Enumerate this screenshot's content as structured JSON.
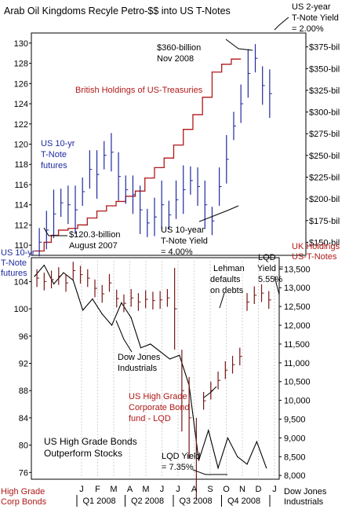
{
  "colors": {
    "background": "#ffffff",
    "panel_fill": "#ffffff",
    "grid": "#bfbfbf",
    "tnote_bars": "#1f2aa0",
    "uk_holdings": "#b01818",
    "lqd_bars": "#7a1616",
    "dow": "#000000",
    "red_label": "#b01818",
    "blue_label": "#1f2aa0"
  },
  "chart_data": [
    {
      "panel": "top",
      "type": "line",
      "title": "Arab Oil Kingdoms Recyle Petro-$$ into US T-Notes",
      "left_axis": {
        "label_lines": [
          "US 10-yr",
          "T-Note",
          "futures"
        ],
        "ticks": [
          110,
          112,
          114,
          116,
          118,
          120,
          122,
          124,
          126,
          128,
          130
        ],
        "range": [
          109,
          131
        ]
      },
      "right_axis": {
        "label_lines": [
          "UK Holdings",
          "US-T-Notes"
        ],
        "ticks": [
          "$150-bil",
          "$175-bil",
          "$200-bil",
          "$225-bil",
          "$250-bil",
          "$275-bil",
          "$300-bil",
          "$325-bil",
          "$350-bil",
          "$375-bil"
        ],
        "tick_values": [
          150,
          175,
          200,
          225,
          250,
          275,
          300,
          325,
          350,
          375
        ],
        "range": [
          135,
          391
        ]
      },
      "series": [
        {
          "name": "US 10-yr T-Note futures",
          "style": "hlc_bars",
          "axis": "left",
          "t": [
            0.02,
            0.05,
            0.08,
            0.11,
            0.14,
            0.17,
            0.2,
            0.23,
            0.26,
            0.29,
            0.32,
            0.35,
            0.38,
            0.41,
            0.44,
            0.47,
            0.5,
            0.53,
            0.56,
            0.59,
            0.62,
            0.65,
            0.68,
            0.71,
            0.74,
            0.77,
            0.8,
            0.83,
            0.86,
            0.89,
            0.92,
            0.95,
            0.98
          ],
          "values": [
            110.3,
            111.5,
            113.1,
            114.2,
            114.0,
            113.5,
            115.3,
            117.5,
            117.0,
            118.9,
            119.2,
            116.8,
            115.5,
            115.0,
            113.5,
            112.2,
            112.8,
            114.0,
            113.0,
            114.5,
            115.5,
            116.4,
            115.8,
            114.0,
            112.4,
            115.8,
            118.5,
            121.8,
            124.0,
            127.0,
            128.5,
            125.8,
            125.0
          ]
        },
        {
          "name": "British Holdings of US-Treasuries",
          "style": "step",
          "axis": "right",
          "t": [
            0.0,
            0.04,
            0.07,
            0.1,
            0.14,
            0.18,
            0.22,
            0.26,
            0.3,
            0.34,
            0.38,
            0.42,
            0.46,
            0.5,
            0.54,
            0.58,
            0.62,
            0.66,
            0.7,
            0.74,
            0.78,
            0.82
          ],
          "values": [
            140,
            150,
            158,
            164,
            166,
            170,
            178,
            186,
            192,
            197,
            203,
            209,
            224,
            236,
            247,
            262,
            280,
            297,
            317,
            346,
            355,
            361
          ]
        }
      ],
      "annotations": [
        "$120.3-billion\nAugust 2007",
        "$360-billion\nNov 2008",
        "US 10-year\nT-Note Yield\n= 4.00%",
        "US 2-year\nT-Note Yield\n= 2.00%"
      ]
    },
    {
      "panel": "bottom",
      "type": "line",
      "left_axis": {
        "label_lines": [
          "High Grade",
          "Corp Bonds"
        ],
        "ticks": [
          76,
          80,
          84,
          88,
          92,
          96,
          100,
          104
        ],
        "range": [
          75,
          107.5
        ]
      },
      "right_axis": {
        "label_lines": [
          "Dow Jones",
          "Industrials"
        ],
        "ticks": [
          "8,000",
          "8,500",
          "9,000",
          "9,500",
          "10,000",
          "10,500",
          "11,000",
          "11,500",
          "12,000",
          "12,500",
          "13,000",
          "13,500"
        ],
        "tick_values": [
          8000,
          8500,
          9000,
          9500,
          10000,
          10500,
          11000,
          11500,
          12000,
          12500,
          13000,
          13500
        ],
        "range": [
          7900,
          13800
        ]
      },
      "series": [
        {
          "name": "US High Grade Corporate Bond fund - LQD",
          "style": "hlc_bars",
          "axis": "left",
          "t": [
            0.01,
            0.04,
            0.07,
            0.1,
            0.13,
            0.16,
            0.19,
            0.22,
            0.25,
            0.28,
            0.31,
            0.34,
            0.37,
            0.4,
            0.43,
            0.46,
            0.49,
            0.52,
            0.55,
            0.58,
            0.61,
            0.64,
            0.67,
            0.7,
            0.73,
            0.76,
            0.79,
            0.82,
            0.85,
            0.88,
            0.91,
            0.94,
            0.97
          ],
          "values": [
            104.5,
            104.0,
            104.3,
            104.8,
            103.8,
            105.6,
            105.0,
            104.5,
            103.0,
            102.2,
            103.8,
            101.5,
            100.8,
            101.6,
            101.0,
            101.4,
            101.2,
            101.3,
            101.6,
            100.0,
            88.0,
            84.0,
            78.0,
            86.5,
            88.0,
            89.5,
            91.0,
            91.8,
            93.0,
            101.0,
            102.0,
            102.3,
            101.3
          ]
        },
        {
          "name": "Dow Jones Industrials",
          "style": "line",
          "axis": "right",
          "t": [
            0.0,
            0.04,
            0.08,
            0.12,
            0.16,
            0.2,
            0.24,
            0.28,
            0.32,
            0.36,
            0.4,
            0.44,
            0.48,
            0.52,
            0.56,
            0.6,
            0.64,
            0.68,
            0.72,
            0.76,
            0.8,
            0.84,
            0.88,
            0.92,
            0.96
          ],
          "values": [
            13300,
            13600,
            13100,
            13400,
            13200,
            12400,
            12700,
            12300,
            12000,
            12600,
            12200,
            11400,
            11500,
            11300,
            11100,
            11200,
            10400,
            8400,
            9200,
            8200,
            9000,
            8500,
            8300,
            8900,
            8200
          ]
        }
      ],
      "annotations": [
        "Lehman\ndefaults\non debts",
        "LQD\nYield =\n5.55%",
        "Dow Jones\nIndustrials",
        "US High Grade\nCorporate Bond\nfund - LQD",
        "US High Grade Bonds\nOutperform Stocks",
        "LQD Yield\n= 7.35%"
      ],
      "x_axis": {
        "months": [
          "J",
          "F",
          "M",
          "A",
          "M",
          "J",
          "J",
          "A",
          "S",
          "O",
          "N",
          "D",
          "J"
        ],
        "quarters": [
          "Q1 2008",
          "Q2 2008",
          "Q3 2008",
          "Q4 2008"
        ]
      }
    }
  ]
}
